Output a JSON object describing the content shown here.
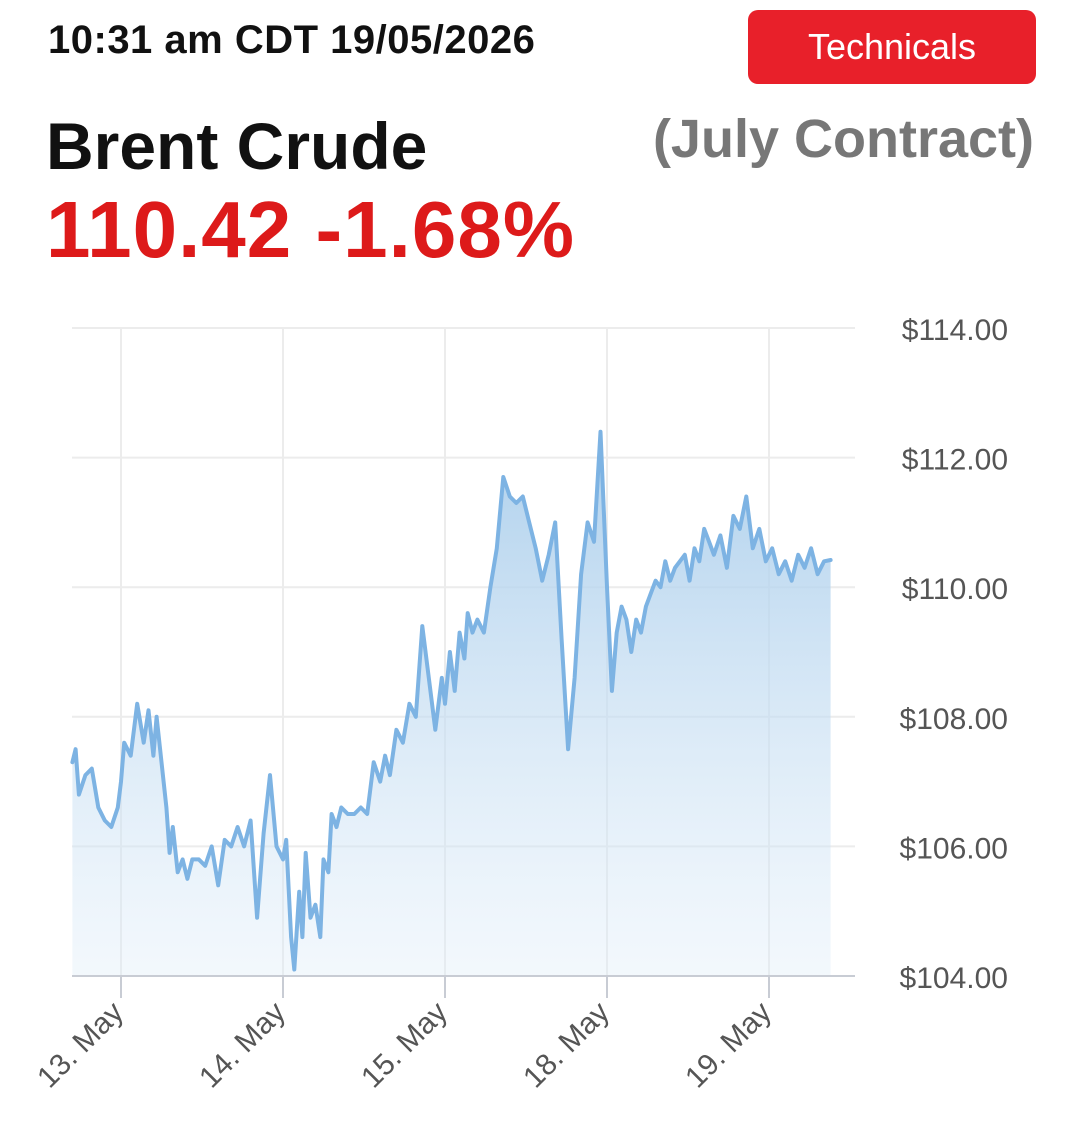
{
  "header": {
    "timestamp": "10:31 am CDT 19/05/2026",
    "technicals_label": "Technicals",
    "title": "Brent Crude",
    "contract": "(July Contract)",
    "price": "110.42",
    "change": "-1.68%"
  },
  "colors": {
    "accent_red": "#e8202a",
    "price_red": "#dd1a1a",
    "series_line": "#7db3e3",
    "area_top": "#a9cdeb",
    "grid": "#ececec"
  },
  "chart_data": {
    "type": "area",
    "title": "",
    "xlabel": "",
    "ylabel": "",
    "ylim": [
      104,
      114
    ],
    "xlim": [
      12.7,
      19.38
    ],
    "y_ticks": [
      114,
      112,
      110,
      108,
      106,
      104
    ],
    "y_tick_labels": [
      "$114.00",
      "$112.00",
      "$110.00",
      "$108.00",
      "$106.00",
      "$104.00"
    ],
    "x_ticks": [
      13,
      14,
      15,
      16,
      17
    ],
    "x_tick_labels": [
      "13. May",
      "14. May",
      "15. May",
      "18. May",
      "19. May"
    ],
    "grid": true,
    "series": [
      {
        "x": [
          12.7,
          12.72,
          12.74,
          12.78,
          12.82,
          12.86,
          12.9,
          12.94,
          12.98,
          13.0,
          13.02,
          13.06,
          13.1,
          13.14,
          13.17,
          13.2,
          13.22,
          13.25,
          13.28,
          13.3,
          13.32,
          13.35,
          13.38,
          13.41,
          13.44,
          13.48,
          13.52,
          13.56,
          13.6,
          13.64,
          13.68,
          13.72,
          13.76,
          13.8,
          13.84,
          13.88,
          13.92,
          13.96,
          14.0,
          14.02,
          14.05,
          14.07,
          14.1,
          14.12,
          14.14,
          14.17,
          14.2,
          14.23,
          14.25,
          14.28,
          14.3,
          14.33,
          14.36,
          14.4,
          14.44,
          14.48,
          14.52,
          14.56,
          14.6,
          14.63,
          14.66,
          14.7,
          14.74,
          14.78,
          14.82,
          14.86,
          14.9,
          14.94,
          14.98,
          15.0,
          15.03,
          15.06,
          15.09,
          15.12,
          15.14,
          15.17,
          15.2,
          15.24,
          15.28,
          15.32,
          15.36,
          15.4,
          15.44,
          15.48,
          15.52,
          15.56,
          15.6,
          15.64,
          15.68,
          15.72,
          15.76,
          15.8,
          15.84,
          15.88,
          15.92,
          15.96,
          16.0,
          16.03,
          16.06,
          16.09,
          16.12,
          16.15,
          16.18,
          16.21,
          16.24,
          16.27,
          16.3,
          16.33,
          16.36,
          16.39,
          16.42,
          16.45,
          16.48,
          16.51,
          16.54,
          16.57,
          16.6,
          16.63,
          16.66,
          16.7,
          16.74,
          16.78,
          16.82,
          16.86,
          16.9,
          16.94,
          16.98,
          17.02,
          17.06,
          17.1,
          17.14,
          17.18,
          17.22,
          17.26,
          17.3,
          17.34,
          17.38
        ],
        "y": [
          107.3,
          107.5,
          106.8,
          107.1,
          107.2,
          106.6,
          106.4,
          106.3,
          106.6,
          107.0,
          107.6,
          107.4,
          108.2,
          107.6,
          108.1,
          107.4,
          108.0,
          107.3,
          106.6,
          105.9,
          106.3,
          105.6,
          105.8,
          105.5,
          105.8,
          105.8,
          105.7,
          106.0,
          105.4,
          106.1,
          106.0,
          106.3,
          106.0,
          106.4,
          104.9,
          106.2,
          107.1,
          106.0,
          105.8,
          106.1,
          104.6,
          104.1,
          105.3,
          104.6,
          105.9,
          104.9,
          105.1,
          104.6,
          105.8,
          105.6,
          106.5,
          106.3,
          106.6,
          106.5,
          106.5,
          106.6,
          106.5,
          107.3,
          107.0,
          107.4,
          107.1,
          107.8,
          107.6,
          108.2,
          108.0,
          109.4,
          108.6,
          107.8,
          108.6,
          108.2,
          109.0,
          108.4,
          109.3,
          108.9,
          109.6,
          109.3,
          109.5,
          109.3,
          110.0,
          110.6,
          111.7,
          111.4,
          111.3,
          111.4,
          111.0,
          110.6,
          110.1,
          110.5,
          111.0,
          109.2,
          107.5,
          108.6,
          110.2,
          111.0,
          110.7,
          112.4,
          110.0,
          108.4,
          109.3,
          109.7,
          109.5,
          109.0,
          109.5,
          109.3,
          109.7,
          109.9,
          110.1,
          110.0,
          110.4,
          110.1,
          110.3,
          110.4,
          110.5,
          110.1,
          110.6,
          110.4,
          110.9,
          110.7,
          110.5,
          110.8,
          110.3,
          111.1,
          110.9,
          111.4,
          110.6,
          110.9,
          110.4,
          110.6,
          110.2,
          110.4,
          110.1,
          110.5,
          110.3,
          110.6,
          110.2,
          110.4,
          110.42
        ]
      }
    ]
  }
}
